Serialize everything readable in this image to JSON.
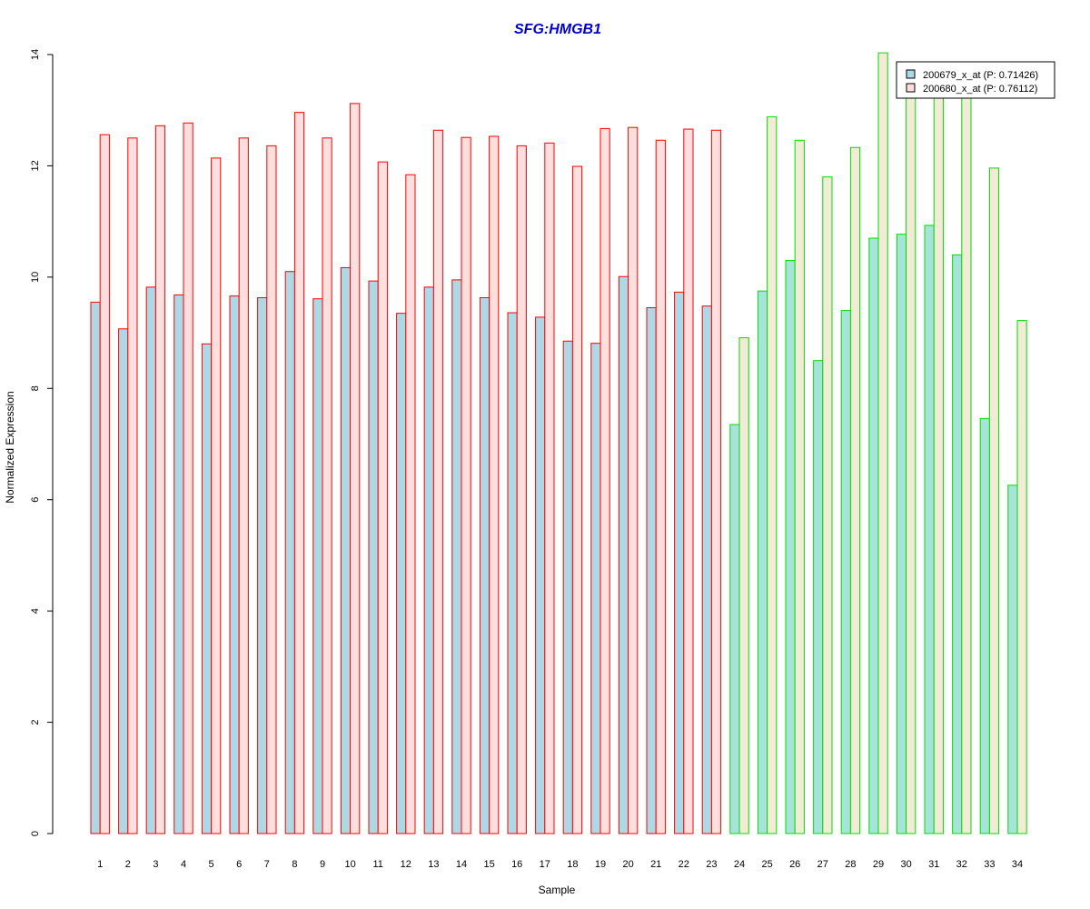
{
  "chart_data": {
    "type": "bar",
    "title": "SFG:HMGB1",
    "xlabel": "Sample",
    "ylabel": "Normalized Expression",
    "ylim": [
      0,
      14
    ],
    "yticks": [
      0,
      2,
      4,
      6,
      8,
      10,
      12,
      14
    ],
    "grid": false,
    "legend_position": "top-right",
    "categories": [
      "1",
      "2",
      "3",
      "4",
      "5",
      "6",
      "7",
      "8",
      "9",
      "10",
      "11",
      "12",
      "13",
      "14",
      "15",
      "16",
      "17",
      "18",
      "19",
      "20",
      "21",
      "22",
      "23",
      "24",
      "25",
      "26",
      "27",
      "28",
      "29",
      "30",
      "31",
      "32",
      "33",
      "34"
    ],
    "group_split_after": 23,
    "series": [
      {
        "name": "200679_x_at (P: 0.71426)",
        "values": [
          9.55,
          9.07,
          9.82,
          9.68,
          8.8,
          9.66,
          9.63,
          10.1,
          9.61,
          10.17,
          9.93,
          9.35,
          9.82,
          9.95,
          9.63,
          9.36,
          9.28,
          8.85,
          8.81,
          10.01,
          9.45,
          9.73,
          9.48,
          7.35,
          9.75,
          10.3,
          8.5,
          9.4,
          10.7,
          10.77,
          10.93,
          10.4,
          7.46,
          6.26
        ]
      },
      {
        "name": "200680_x_at (P: 0.76112)",
        "values": [
          12.56,
          12.5,
          12.72,
          12.77,
          12.14,
          12.5,
          12.36,
          12.96,
          12.5,
          13.12,
          12.07,
          11.84,
          12.64,
          12.51,
          12.53,
          12.36,
          12.41,
          11.99,
          12.67,
          12.69,
          12.46,
          12.66,
          12.64,
          8.91,
          12.88,
          12.46,
          11.8,
          12.33,
          14.03,
          13.5,
          13.6,
          13.4,
          11.96,
          9.22
        ]
      }
    ],
    "colors": {
      "title": "#0000cc",
      "series1_fill_group1": "#add8e6",
      "series2_fill_group1": "#ffdede",
      "series1_fill_group2": "#a6e3d9",
      "series2_fill_group2": "#f2ebd6",
      "border_group1": "#ff0000",
      "border_group2": "#00dd00"
    }
  }
}
